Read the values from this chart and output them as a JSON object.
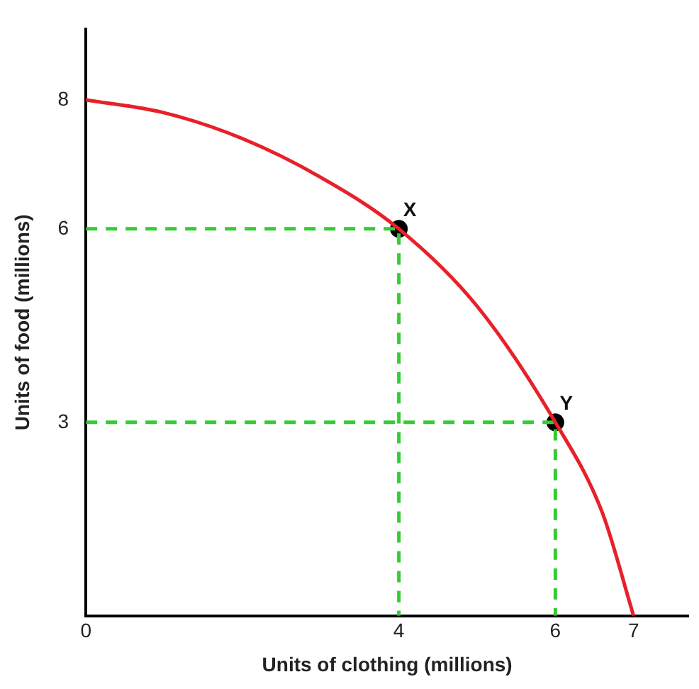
{
  "chart_data": {
    "type": "line",
    "xlabel": "Units of clothing (millions)",
    "ylabel": "Units of food (millions)",
    "xlim": [
      0,
      7.7
    ],
    "ylim": [
      0,
      9.1
    ],
    "xticks": [
      0,
      4,
      6,
      7
    ],
    "yticks": [
      3,
      6,
      8
    ],
    "grid": false,
    "legend": false,
    "series": [
      {
        "x": [
          0,
          1,
          2,
          3,
          4,
          5,
          6,
          6.6,
          7
        ],
        "values": [
          8,
          7.8,
          7.4,
          6.8,
          6,
          4.8,
          3,
          1.6,
          0
        ],
        "color": "#e8202a",
        "marker": "none",
        "line_style": "solid"
      },
      {
        "x": [
          0,
          4,
          4
        ],
        "values": [
          6,
          6,
          0
        ],
        "color": "#33cc33",
        "marker": "none",
        "line_style": "dashed"
      },
      {
        "x": [
          0,
          6,
          6
        ],
        "values": [
          3,
          3,
          0
        ],
        "color": "#33cc33",
        "marker": "none",
        "line_style": "dashed"
      },
      {
        "type": "scatter",
        "x": [
          4,
          6
        ],
        "values": [
          6,
          3
        ],
        "color": "#000000",
        "marker": "circle"
      }
    ],
    "annotations": [
      {
        "text": "X",
        "x": 4,
        "y": 6
      },
      {
        "text": "Y",
        "x": 6,
        "y": 3
      }
    ]
  }
}
